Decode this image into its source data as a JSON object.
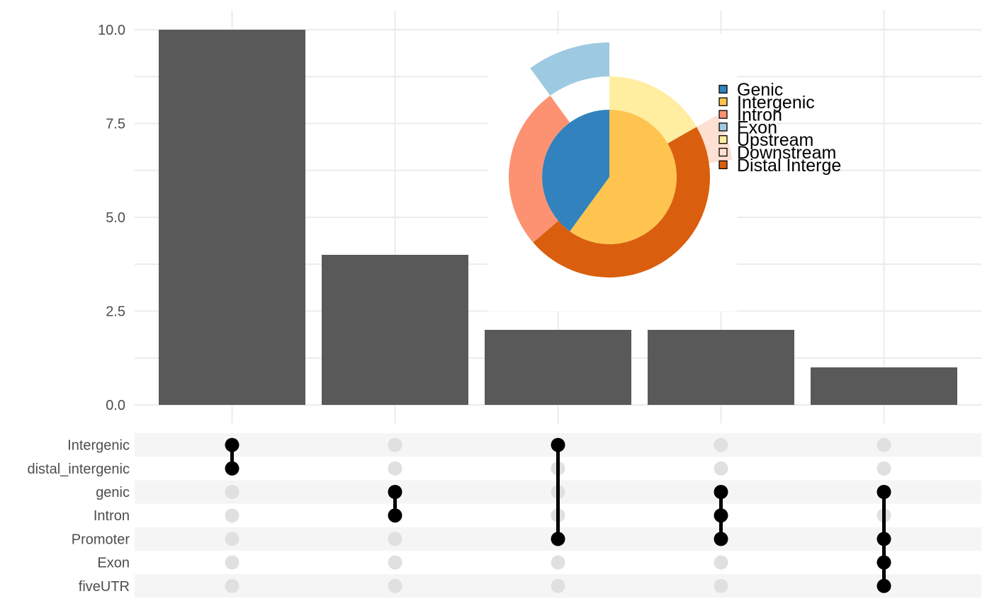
{
  "chart_data": {
    "type": "bar",
    "subtype": "upset-plot",
    "title": "",
    "xlabel": "",
    "ylabel": "",
    "ylim": [
      0,
      10.5
    ],
    "yticks": [
      "0.0",
      "2.5",
      "5.0",
      "7.5",
      "10.0"
    ],
    "grid": true,
    "sets": [
      "Intergenic",
      "distal_intergenic",
      "genic",
      "Intron",
      "Promoter",
      "Exon",
      "fiveUTR"
    ],
    "intersections": [
      {
        "value": 10,
        "members": [
          "Intergenic",
          "distal_intergenic"
        ]
      },
      {
        "value": 4,
        "members": [
          "genic",
          "Intron"
        ]
      },
      {
        "value": 2,
        "members": [
          "Intergenic",
          "Promoter"
        ]
      },
      {
        "value": 2,
        "members": [
          "genic",
          "Intron",
          "Promoter"
        ]
      },
      {
        "value": 1,
        "members": [
          "genic",
          "Promoter",
          "Exon",
          "fiveUTR"
        ]
      }
    ],
    "colors": {
      "bar": "#595959",
      "dot_active": "#000000",
      "dot_inactive": "#e0e0e0",
      "row_stripe": "#f5f5f5",
      "grid": "#ebebeb"
    },
    "inset": {
      "type": "pie",
      "legend_position": "right",
      "legend": [
        {
          "label": "Genic",
          "color": "#3182bd"
        },
        {
          "label": "Intergenic",
          "color": "#fec44f"
        },
        {
          "label": "Intron",
          "color": "#fc9272"
        },
        {
          "label": "Exon",
          "color": "#9ecae1"
        },
        {
          "label": "Upstream",
          "color": "#ffeda0"
        },
        {
          "label": "Downstream",
          "color": "#fee0d2"
        },
        {
          "label": "Distal Intergenic",
          "color": "#d95f0e"
        }
      ],
      "inner_ring": [
        {
          "label": "Genic",
          "fraction": 0.4
        },
        {
          "label": "Intergenic",
          "fraction": 0.6
        }
      ],
      "outer_ring": [
        {
          "label": "Upstream",
          "fraction": 0.167
        },
        {
          "label": "Distal Intergenic",
          "fraction": 0.47
        },
        {
          "label": "Intron",
          "fraction": 0.263
        }
      ],
      "exploded": [
        {
          "label": "Exon",
          "fraction": 0.1
        },
        {
          "label": "Downstream",
          "fraction": 0.061
        }
      ]
    }
  }
}
